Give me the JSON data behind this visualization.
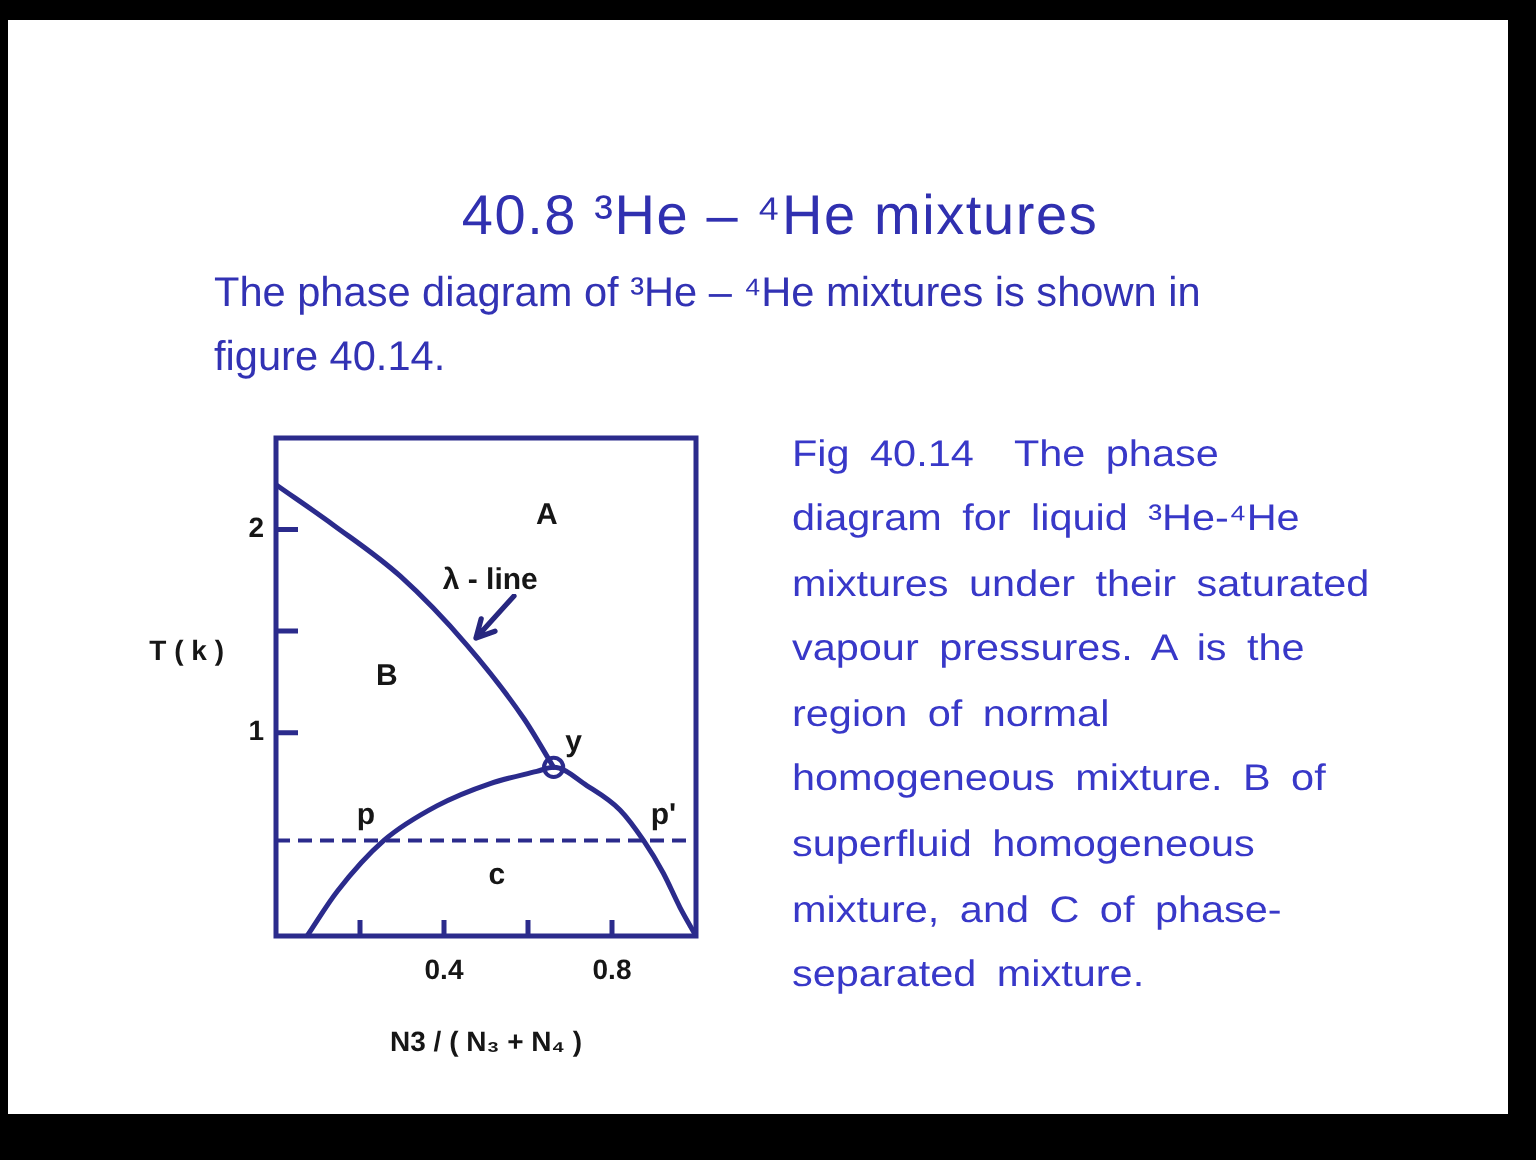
{
  "chart_data": {
    "type": "line",
    "title": "40.8 ³He – ⁴He mixtures",
    "subtitle": "The phase diagram of ³He – ⁴He mixtures is shown in figure 40.14.",
    "xlabel": "N3 / ( N₃ + N₄ )",
    "ylabel": "T ( k )",
    "xlim": [
      0,
      1
    ],
    "ylim": [
      0,
      2.45
    ],
    "xticks": [
      {
        "value": 0.2,
        "label": null
      },
      0.4,
      {
        "value": 0.6,
        "label": null
      },
      0.8
    ],
    "yticks": [
      1,
      {
        "value": 1.5,
        "label": null
      },
      2
    ],
    "series": [
      {
        "type": "line",
        "color": "#2b2b8c",
        "x": [
          0,
          0.138,
          0.296,
          0.455,
          0.59,
          0.661
        ],
        "values": [
          2.22,
          2.02,
          1.77,
          1.43,
          1.07,
          0.83
        ]
      },
      {
        "type": "line",
        "color": "#2b2b8c",
        "x": [
          0.074,
          0.146,
          0.257,
          0.383,
          0.51,
          0.621,
          0.661,
          0.74,
          0.819,
          0.875,
          0.922,
          0.962,
          1.0
        ],
        "values": [
          0,
          0.22,
          0.47,
          0.64,
          0.75,
          0.81,
          0.83,
          0.74,
          0.62,
          0.47,
          0.31,
          0.14,
          0
        ]
      },
      {
        "type": "scatter",
        "marker": "circle",
        "color": "#2b2b8c",
        "x": [
          0.661
        ],
        "values": [
          0.83
        ]
      }
    ],
    "ref_lines": [
      {
        "axis": "y",
        "value": 0.47,
        "color": "#2b2b8c",
        "line_style": "dashed"
      }
    ],
    "annotations": [
      "A",
      "λ - line",
      "B",
      "c",
      "Fig 40.14  The phase diagram for liquid ³He-⁴He mixtures under their saturated vapour pressures. A is the region of normal homogeneous mixture. B of superfluid homogeneous mixture, and C of phase-separated mixture.",
      {
        "text": "p",
        "x": 0.257,
        "y": 0.47
      },
      {
        "text": "p'",
        "x": 0.875,
        "y": 0.47
      },
      {
        "text": "y",
        "x": 0.661,
        "y": 0.83
      }
    ]
  }
}
